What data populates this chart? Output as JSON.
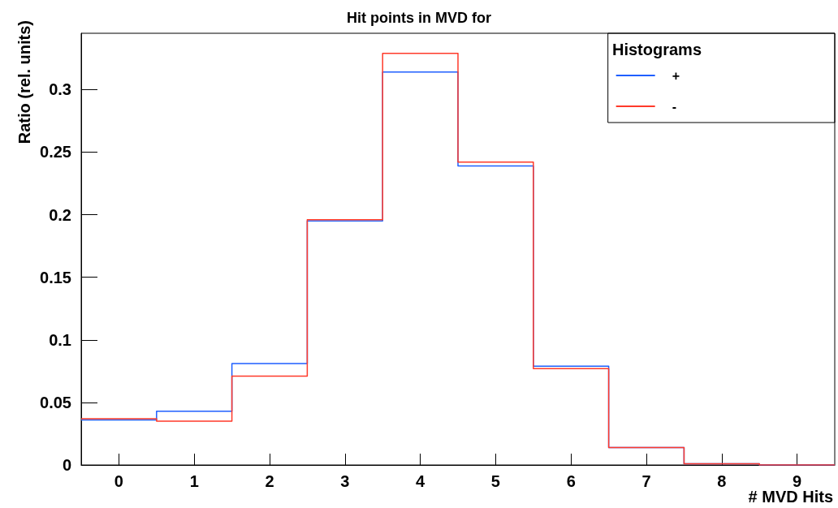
{
  "chart_data": {
    "type": "histogram",
    "title": "Hit points in MVD for",
    "xlabel": "# MVD Hits",
    "ylabel": "Ratio (rel. units)",
    "legend_title": "Histograms",
    "bins": [
      -0.5,
      0.5,
      1.5,
      2.5,
      3.5,
      4.5,
      5.5,
      6.5,
      7.5,
      8.5,
      9.5
    ],
    "series": [
      {
        "name": "+",
        "color": "#1f5fff",
        "values": [
          0.036,
          0.043,
          0.081,
          0.195,
          0.314,
          0.239,
          0.079,
          0.014,
          0.001,
          0
        ]
      },
      {
        "name": "-",
        "color": "#ff3a2a",
        "values": [
          0.037,
          0.035,
          0.071,
          0.196,
          0.329,
          0.242,
          0.077,
          0.014,
          0.001,
          0
        ]
      }
    ],
    "xlim": [
      -0.5,
      9.5
    ],
    "xticks": [
      0,
      1,
      2,
      3,
      4,
      5,
      6,
      7,
      8,
      9
    ],
    "ylim": [
      0,
      0.345
    ],
    "yticks": [
      0,
      0.05,
      0.1,
      0.15,
      0.2,
      0.25,
      0.3
    ],
    "grid": false,
    "legend": "top right"
  }
}
